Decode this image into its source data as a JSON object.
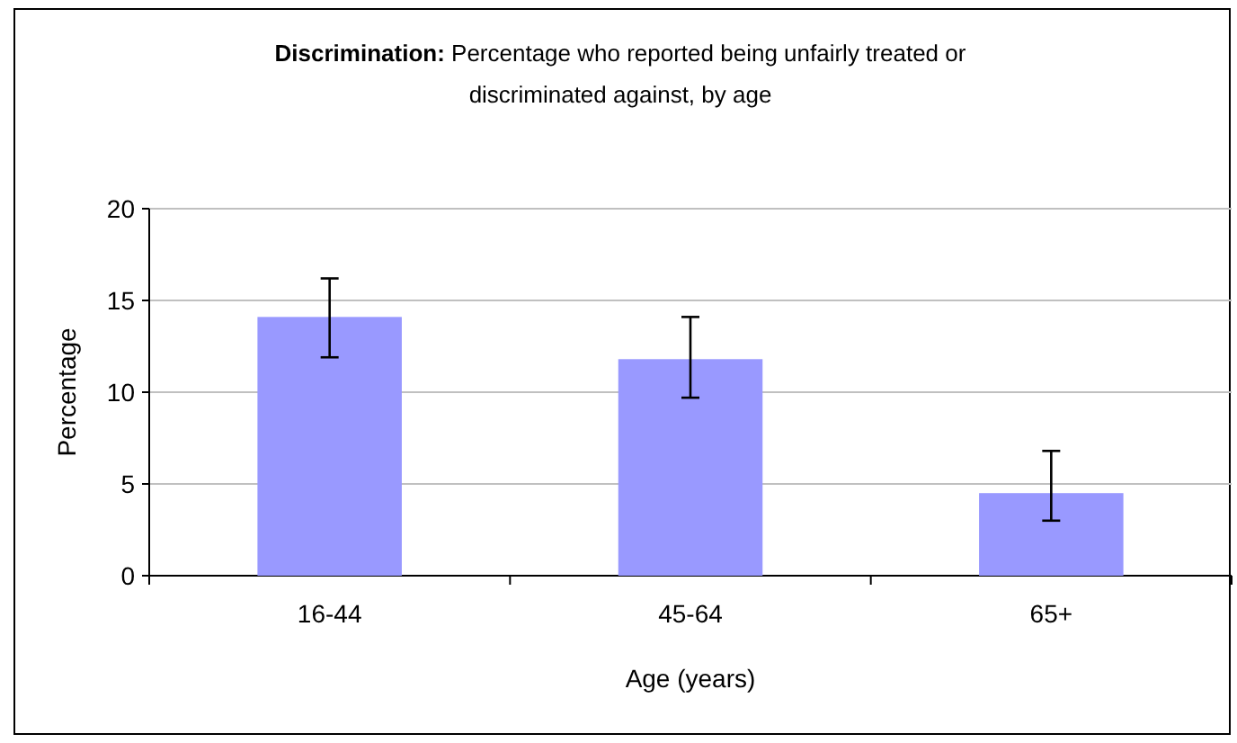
{
  "chart_data": {
    "type": "bar",
    "title": "Discrimination: Percentage who reported being unfairly treated or discriminated against,  by age",
    "xlabel": "Age (years)",
    "ylabel": "Percentage",
    "categories": [
      "16-44",
      "45-64",
      "65+"
    ],
    "values": [
      14.1,
      11.8,
      4.5
    ],
    "color": "#9999ff",
    "errors": [
      [
        11.9,
        16.2
      ],
      [
        9.7,
        14.1
      ],
      [
        3.0,
        6.8
      ]
    ],
    "ylim": [
      0,
      20
    ],
    "yticks": [
      0,
      5,
      10,
      15,
      20
    ],
    "grid": "y"
  }
}
